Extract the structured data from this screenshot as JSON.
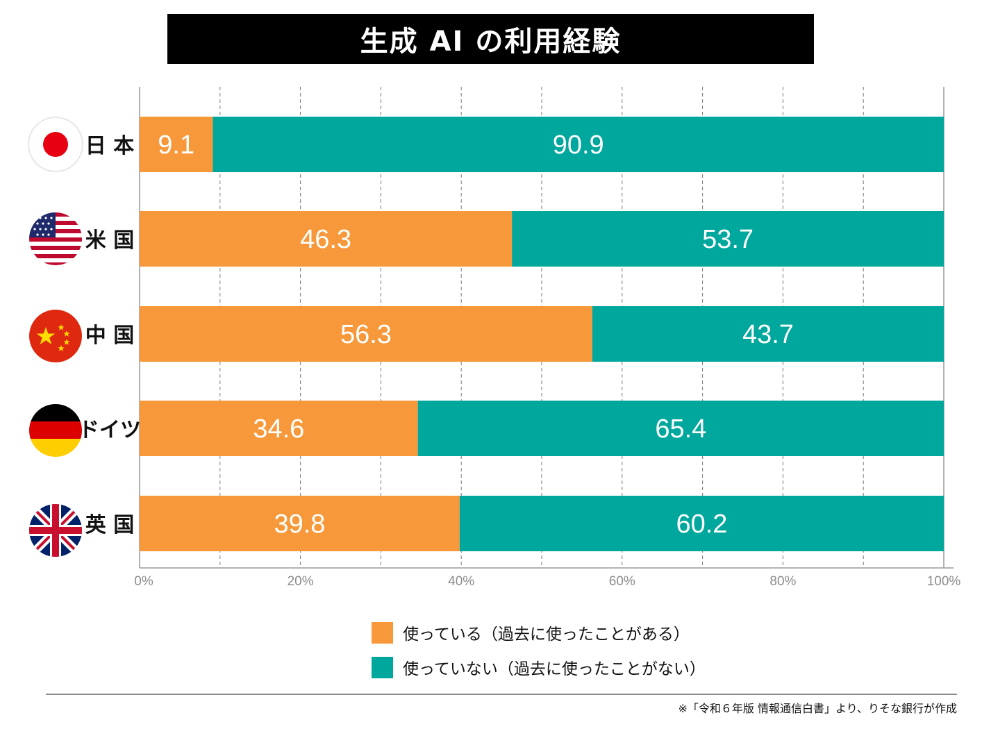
{
  "title": "生成 AI の利用経験",
  "colors": {
    "used": "#F7993A",
    "not_used": "#00A79D",
    "title_bg": "#000000"
  },
  "chart_data": {
    "type": "bar",
    "orientation": "horizontal",
    "stacked": true,
    "title": "生成 AI の利用経験",
    "categories": [
      "日 本",
      "米 国",
      "中 国",
      "ドイツ",
      "英 国"
    ],
    "series": [
      {
        "name": "使っている（過去に使ったことがある）",
        "values": [
          9.1,
          46.3,
          56.3,
          34.6,
          39.8
        ],
        "labels": [
          "9.1",
          "46.3",
          "56.3",
          "34.6",
          "39.8"
        ]
      },
      {
        "name": "使っていない（過去に使ったことがない）",
        "values": [
          90.9,
          53.7,
          43.7,
          65.4,
          60.2
        ],
        "labels": [
          "90.9",
          "53.7",
          "43.7",
          "65.4",
          "60.2"
        ]
      }
    ],
    "xlim": [
      0,
      100
    ],
    "xticks": [
      0,
      20,
      40,
      60,
      80,
      100
    ],
    "xtick_labels": [
      "0%",
      "20%",
      "40%",
      "60%",
      "80%",
      "100%"
    ],
    "grid_step": 10,
    "grid": true,
    "legend_position": "bottom-center"
  },
  "flags": [
    "japan-flag-icon",
    "usa-flag-icon",
    "china-flag-icon",
    "germany-flag-icon",
    "uk-flag-icon"
  ],
  "legend": [
    {
      "label": "使っている（過去に使ったことがある）",
      "color": "#F7993A"
    },
    {
      "label": "使っていない（過去に使ったことがない）",
      "color": "#00A79D"
    }
  ],
  "source": "※「令和６年版 情報通信白書」より、りそな銀行が作成"
}
